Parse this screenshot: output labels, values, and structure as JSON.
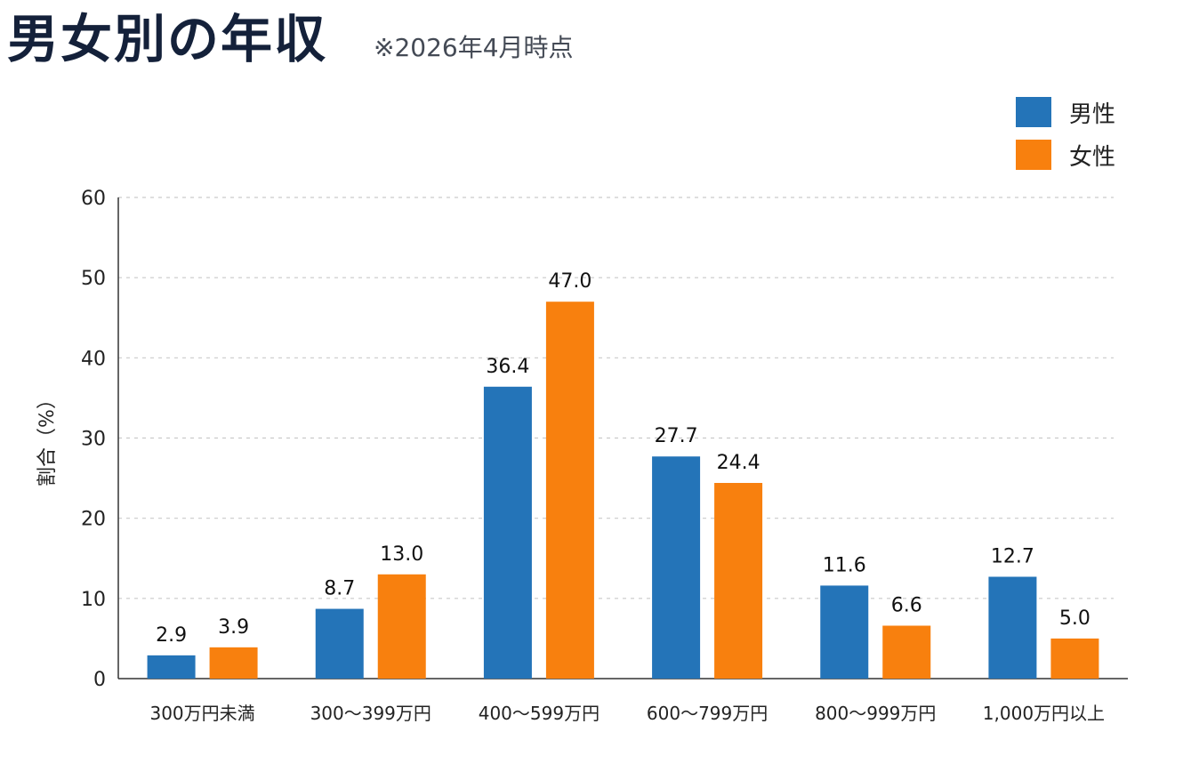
{
  "header": {
    "title": "男女別の年収",
    "note": "※2026年4月時点"
  },
  "legend": [
    {
      "label": "男性",
      "color": "#2474b8"
    },
    {
      "label": "女性",
      "color": "#f8800e"
    }
  ],
  "chart_data": {
    "type": "bar",
    "categories": [
      "300万円未満",
      "300〜399万円",
      "400〜599万円",
      "600〜799万円",
      "800〜999万円",
      "1,000万円以上"
    ],
    "series": [
      {
        "name": "男性",
        "values": [
          2.9,
          8.7,
          36.4,
          27.7,
          11.6,
          12.7
        ],
        "color": "#2474b8"
      },
      {
        "name": "女性",
        "values": [
          3.9,
          13.0,
          47.0,
          24.4,
          6.6,
          5.0
        ],
        "color": "#f8800e"
      }
    ],
    "value_labels": [
      [
        "2.9",
        "8.7",
        "36.4",
        "27.7",
        "11.6",
        "12.7"
      ],
      [
        "3.9",
        "13.0",
        "47.0",
        "24.4",
        "6.6",
        "5.0"
      ]
    ],
    "ylabel": "割合（%）",
    "ylim": [
      0,
      60
    ],
    "yticks": [
      "0",
      "10",
      "20",
      "30",
      "40",
      "50",
      "60"
    ],
    "grid": true,
    "legend_position": "top-right"
  }
}
